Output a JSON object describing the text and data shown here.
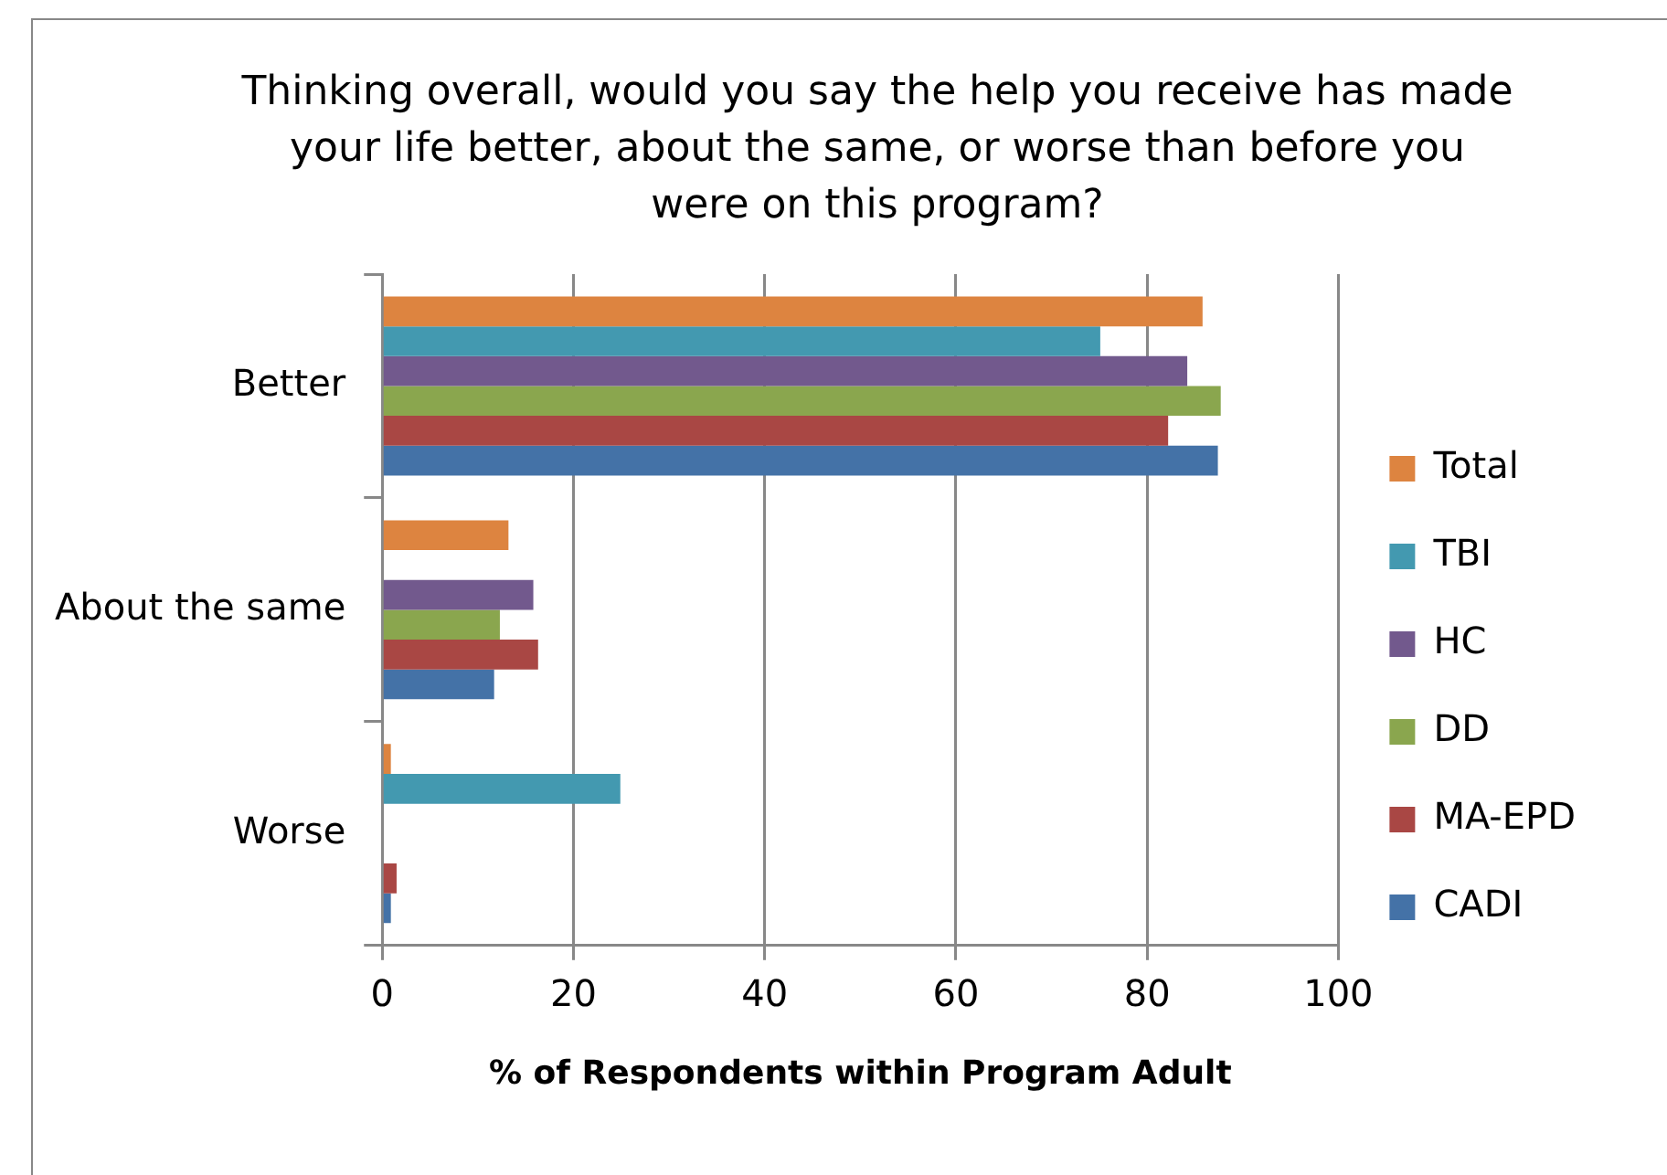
{
  "chart_data": {
    "type": "bar",
    "orientation": "horizontal",
    "title": "Thinking overall, would you say the help you receive has made your life better, about the same, or worse than before you were on this program?",
    "xlabel": "% of Respondents within Program Adult",
    "categories": [
      "Better",
      "About the same",
      "Worse"
    ],
    "series": [
      {
        "name": "Total",
        "color": "#dd8440",
        "values": [
          85.8,
          13.2,
          0.9
        ]
      },
      {
        "name": "TBI",
        "color": "#4399b0",
        "values": [
          75.1,
          0,
          24.9
        ]
      },
      {
        "name": "HC",
        "color": "#72598d",
        "values": [
          84.2,
          15.8,
          0
        ]
      },
      {
        "name": "DD",
        "color": "#8aa64e",
        "values": [
          87.7,
          12.3,
          0
        ]
      },
      {
        "name": "MA-EPD",
        "color": "#a94744",
        "values": [
          82.2,
          16.3,
          1.5
        ]
      },
      {
        "name": "CADI",
        "color": "#4472a7",
        "values": [
          87.4,
          11.7,
          0.9
        ]
      }
    ],
    "xlim": [
      0,
      100
    ],
    "xticks": [
      0,
      20,
      40,
      60,
      80,
      100
    ],
    "grid": "x",
    "legend": "right"
  }
}
